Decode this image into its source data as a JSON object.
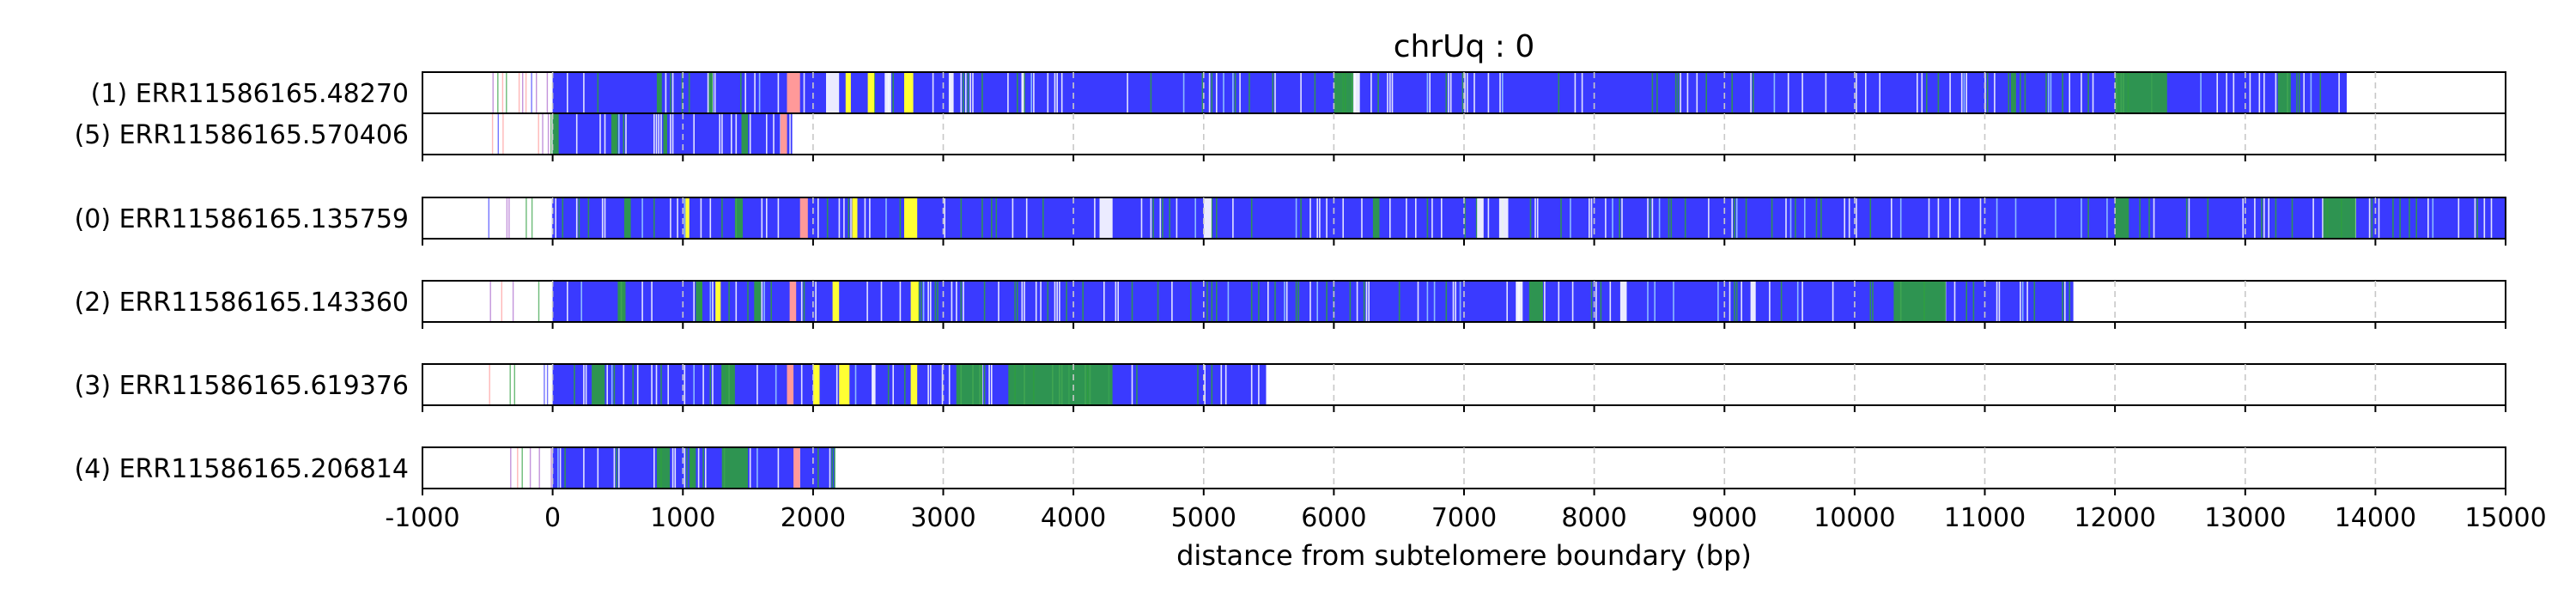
{
  "chart_data": {
    "type": "read-alignment-track",
    "title": "chrUq : 0",
    "xlabel": "distance from subtelomere boundary (bp)",
    "xlim": [
      -1000,
      15000
    ],
    "xticks": [
      -1000,
      0,
      1000,
      2000,
      3000,
      4000,
      5000,
      6000,
      7000,
      8000,
      9000,
      10000,
      11000,
      12000,
      13000,
      14000,
      15000
    ],
    "xtick_labels": [
      "-1000",
      "0",
      "1000",
      "2000",
      "3000",
      "4000",
      "5000",
      "6000",
      "7000",
      "8000",
      "9000",
      "10000",
      "11000",
      "12000",
      "13000",
      "14000",
      "15000"
    ],
    "grid": "vertical dashed",
    "colors": {
      "blue": "#3a3aff",
      "green": "#2e9e3e",
      "yellow": "#ffff33",
      "pink": "#ff9999",
      "purple": "#aa66cc",
      "white": "#ffffff",
      "frame": "#000000",
      "grid": "#c8c8c8"
    },
    "panels": [
      {
        "reads": [
          {
            "label": "(1) ERR11586165.48270",
            "start": -500,
            "end": 13780,
            "dense_start": 0,
            "pink": [
              [
                1800,
                1900
              ]
            ],
            "yellow": [
              [
                2250,
                2290
              ],
              [
                2420,
                2470
              ],
              [
                2700,
                2770
              ]
            ],
            "green": [
              [
                800,
                830
              ],
              [
                1200,
                1230
              ],
              [
                6000,
                6150
              ],
              [
                11200,
                11240
              ],
              [
                12000,
                12400
              ],
              [
                13250,
                13350
              ]
            ],
            "white": [
              [
                2100,
                2200
              ],
              [
                2550,
                2600
              ],
              [
                3050,
                3080
              ],
              [
                3600,
                3620
              ],
              [
                6150,
                6200
              ]
            ]
          },
          {
            "label": "(5) ERR11586165.570406",
            "start": -500,
            "end": 1840,
            "dense_start": 0,
            "pink": [
              [
                1750,
                1800
              ]
            ],
            "yellow": [],
            "green": [
              [
                0,
                40
              ],
              [
                450,
                500
              ],
              [
                850,
                880
              ],
              [
                1450,
                1500
              ]
            ],
            "white": []
          }
        ]
      },
      {
        "reads": [
          {
            "label": "(0) ERR11586165.135759",
            "start": -500,
            "end": 15000,
            "dense_start": 0,
            "pink": [
              [
                1900,
                1960
              ]
            ],
            "yellow": [
              [
                1020,
                1050
              ],
              [
                2300,
                2340
              ],
              [
                2700,
                2800
              ]
            ],
            "green": [
              [
                550,
                600
              ],
              [
                1400,
                1460
              ],
              [
                6300,
                6350
              ],
              [
                12000,
                12100
              ],
              [
                13600,
                13850
              ]
            ],
            "white": [
              [
                4200,
                4300
              ],
              [
                5000,
                5060
              ],
              [
                7100,
                7150
              ],
              [
                7270,
                7340
              ]
            ]
          }
        ]
      },
      {
        "reads": [
          {
            "label": "(2) ERR11586165.143360",
            "start": -500,
            "end": 11680,
            "dense_start": 0,
            "pink": [
              [
                1820,
                1870
              ]
            ],
            "yellow": [
              [
                1250,
                1290
              ],
              [
                2150,
                2200
              ],
              [
                2750,
                2810
              ]
            ],
            "green": [
              [
                500,
                560
              ],
              [
                1100,
                1150
              ],
              [
                1550,
                1600
              ],
              [
                7500,
                7600
              ],
              [
                10300,
                10700
              ]
            ],
            "white": [
              [
                7400,
                7450
              ],
              [
                8200,
                8250
              ],
              [
                9200,
                9240
              ]
            ]
          }
        ]
      },
      {
        "reads": [
          {
            "label": "(3) ERR11586165.619376",
            "start": -500,
            "end": 5480,
            "dense_start": 0,
            "pink": [
              [
                1800,
                1850
              ]
            ],
            "yellow": [
              [
                2000,
                2050
              ],
              [
                2200,
                2280
              ],
              [
                2750,
                2800
              ]
            ],
            "green": [
              [
                300,
                400
              ],
              [
                1300,
                1400
              ],
              [
                3100,
                3300
              ],
              [
                3500,
                4300
              ]
            ],
            "white": [
              [
                2450,
                2480
              ]
            ]
          }
        ]
      },
      {
        "reads": [
          {
            "label": "(4) ERR11586165.206814",
            "start": -500,
            "end": 2170,
            "dense_start": 0,
            "pink": [
              [
                1850,
                1900
              ]
            ],
            "yellow": [],
            "green": [
              [
                800,
                900
              ],
              [
                1050,
                1100
              ],
              [
                1300,
                1500
              ]
            ],
            "white": []
          }
        ]
      }
    ]
  }
}
